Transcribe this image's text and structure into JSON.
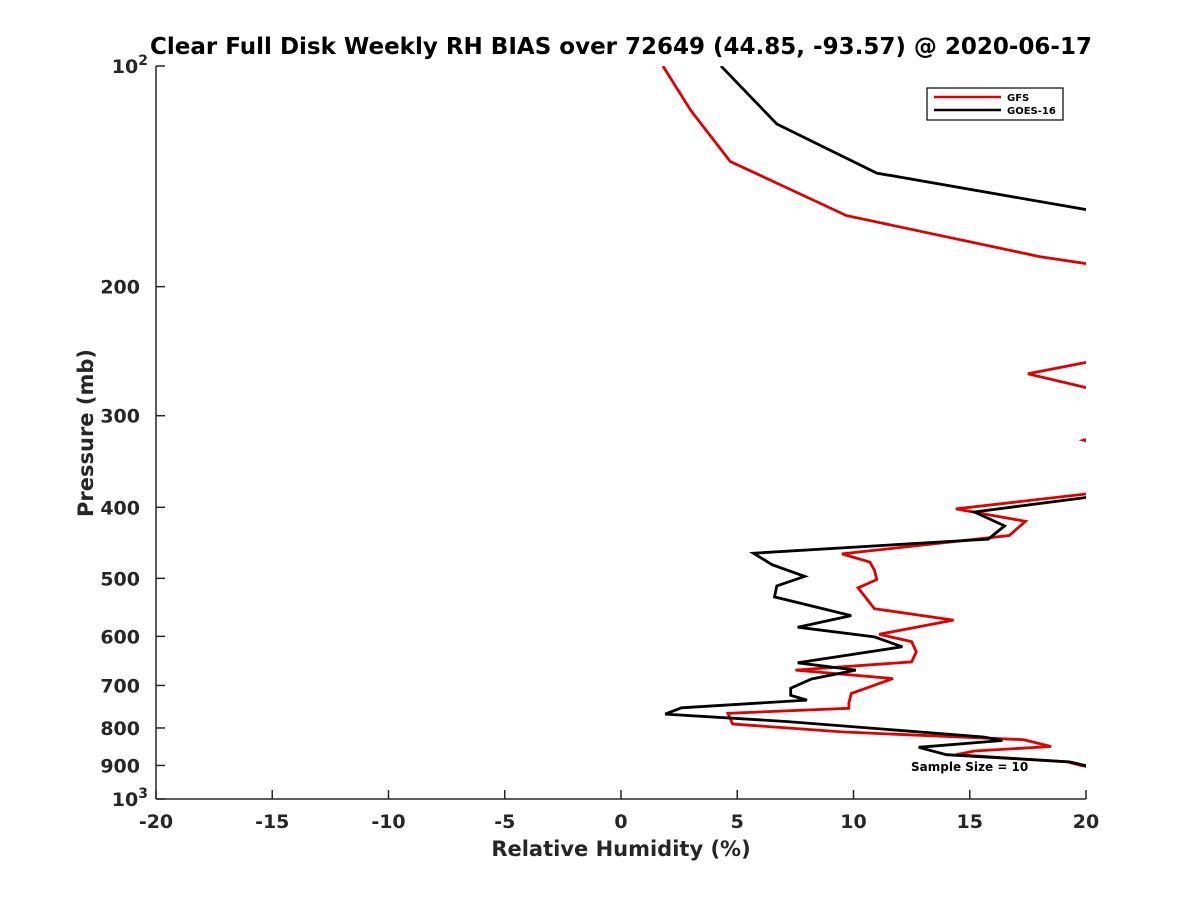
{
  "chart_data": {
    "type": "line",
    "title": "Clear Full Disk Weekly RH BIAS over 72649 (44.85, -93.57) @ 2020-06-17",
    "xlabel": "Relative Humidity (%)",
    "ylabel": "Pressure (mb)",
    "xlim": [
      -20,
      20
    ],
    "ylim": [
      100,
      1000
    ],
    "y_scale": "log",
    "y_reversed": true,
    "x_ticks": [
      "-20",
      "-15",
      "-10",
      "-5",
      "0",
      "5",
      "10",
      "15",
      "20"
    ],
    "y_ticks": [
      {
        "value": 100,
        "base": "10",
        "exp": "2"
      },
      {
        "value": 200,
        "label": "200"
      },
      {
        "value": 300,
        "label": "300"
      },
      {
        "value": 400,
        "label": "400"
      },
      {
        "value": 500,
        "label": "500"
      },
      {
        "value": 600,
        "label": "600"
      },
      {
        "value": 700,
        "label": "700"
      },
      {
        "value": 800,
        "label": "800"
      },
      {
        "value": 900,
        "label": "900"
      },
      {
        "value": 1000,
        "base": "10",
        "exp": "3"
      }
    ],
    "grid": false,
    "legend_position": "top-right",
    "annotation": "Sample Size = 10",
    "series": [
      {
        "name": "GFS",
        "color": "#e00000",
        "segments": [
          [
            [
              1.8,
              100
            ],
            [
              3.0,
              115
            ],
            [
              4.7,
              135
            ],
            [
              9.7,
              160
            ],
            [
              18.0,
              182
            ],
            [
              20.5,
              187
            ]
          ],
          [
            [
              20.5,
              252
            ],
            [
              17.5,
              263
            ],
            [
              20.5,
              277
            ]
          ],
          [
            [
              20.5,
              320
            ],
            [
              19.9,
              324
            ],
            [
              20.5,
              328
            ]
          ],
          [
            [
              20.5,
              382
            ],
            [
              14.4,
              402
            ],
            [
              17.4,
              418
            ],
            [
              16.7,
              437
            ],
            [
              9.5,
              463
            ],
            [
              10.7,
              475
            ],
            [
              10.9,
              487
            ],
            [
              11.0,
              502
            ],
            [
              10.2,
              515
            ],
            [
              10.6,
              535
            ],
            [
              10.9,
              550
            ],
            [
              14.3,
              570
            ],
            [
              11.1,
              596
            ],
            [
              12.5,
              610
            ],
            [
              12.7,
              630
            ],
            [
              12.5,
              650
            ],
            [
              7.5,
              667
            ],
            [
              11.7,
              685
            ],
            [
              10.6,
              705
            ],
            [
              9.9,
              718
            ],
            [
              9.8,
              740
            ],
            [
              9.8,
              752
            ],
            [
              4.6,
              764
            ],
            [
              4.8,
              790
            ],
            [
              9.5,
              810
            ],
            [
              17.3,
              830
            ],
            [
              18.5,
              848
            ],
            [
              15.2,
              860
            ],
            [
              14.4,
              870
            ],
            [
              19.2,
              890
            ],
            [
              19.8,
              900
            ],
            [
              20.6,
              910
            ]
          ]
        ]
      },
      {
        "name": "GOES-16",
        "color": "#000000",
        "segments": [
          [
            [
              4.3,
              100
            ],
            [
              6.7,
              120
            ],
            [
              11.0,
              140
            ],
            [
              20.5,
              158
            ],
            [
              20.9,
              160
            ]
          ],
          [
            [
              20.5,
              386
            ],
            [
              15.2,
              406
            ],
            [
              16.5,
              424
            ],
            [
              15.8,
              442
            ],
            [
              5.7,
              462
            ],
            [
              6.5,
              479
            ],
            [
              7.9,
              497
            ],
            [
              6.7,
              512
            ],
            [
              6.6,
              530
            ],
            [
              9.9,
              562
            ],
            [
              7.6,
              583
            ],
            [
              10.9,
              601
            ],
            [
              12.1,
              620
            ],
            [
              7.6,
              652
            ],
            [
              10.1,
              667
            ],
            [
              8.2,
              686
            ],
            [
              7.3,
              706
            ],
            [
              7.3,
              722
            ],
            [
              8.0,
              733
            ],
            [
              2.6,
              751
            ],
            [
              1.9,
              766
            ],
            [
              7.1,
              784
            ],
            [
              14.5,
              818
            ],
            [
              15.6,
              823
            ],
            [
              16.4,
              832
            ],
            [
              12.8,
              850
            ],
            [
              14.0,
              870
            ],
            [
              19.3,
              890
            ],
            [
              20.6,
              910
            ]
          ]
        ]
      }
    ]
  }
}
